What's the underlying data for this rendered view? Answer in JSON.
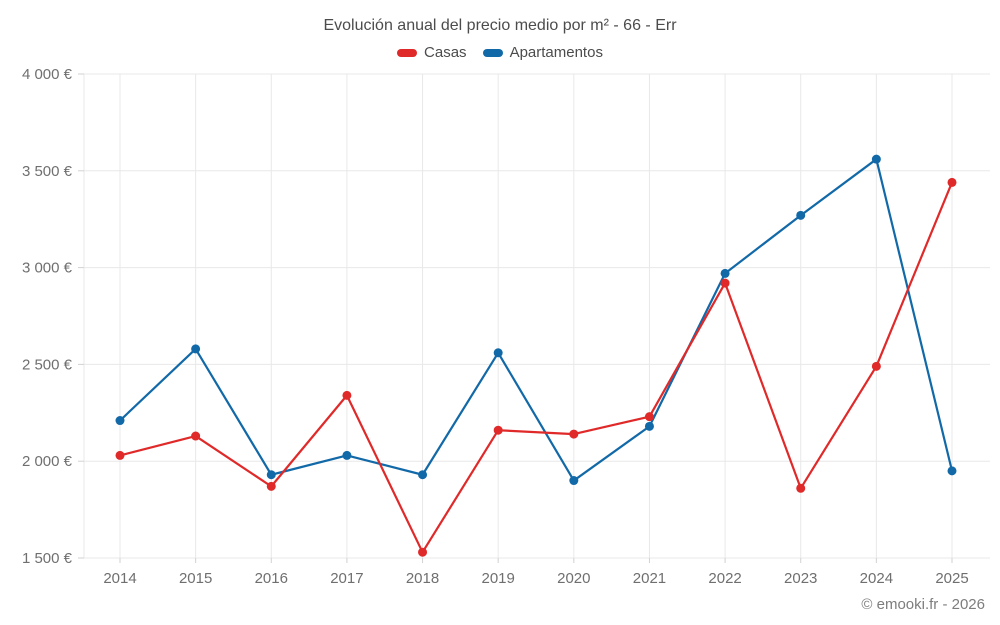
{
  "header": {
    "title": "Evolución anual del precio medio por m² - 66 - Err"
  },
  "footer": {
    "credit": "© emooki.fr - 2026"
  },
  "colors": {
    "casas": "#e02a2a",
    "apartamentos": "#1269a8",
    "gridline": "#e8e8e8",
    "tick": "#d2d2d2",
    "axis_label": "#6f6f6f",
    "title_text": "#4c4c4c",
    "footer_text": "#7d7d7d"
  },
  "chart_data": {
    "type": "line",
    "title": "Evolución anual del precio medio por m² - 66 - Err",
    "categories": [
      "2014",
      "2015",
      "2016",
      "2017",
      "2018",
      "2019",
      "2020",
      "2021",
      "2022",
      "2023",
      "2024",
      "2025"
    ],
    "series": [
      {
        "name": "Casas",
        "color": "#e02a2a",
        "values": [
          2030,
          2130,
          1870,
          2340,
          1530,
          2160,
          2140,
          2230,
          2920,
          1860,
          2490,
          3440
        ]
      },
      {
        "name": "Apartamentos",
        "color": "#1269a8",
        "values": [
          2210,
          2580,
          1930,
          2030,
          1930,
          2560,
          1900,
          2180,
          2970,
          3270,
          3560,
          1950
        ]
      }
    ],
    "xlabel": "",
    "ylabel": "",
    "ylim": [
      1500,
      4000
    ],
    "ytick_values": [
      1500,
      2000,
      2500,
      3000,
      3500,
      4000
    ],
    "ytick_labels": [
      "1 500 €",
      "2 000 €",
      "2 500 €",
      "3 000 €",
      "3 500 €",
      "4 000 €"
    ],
    "grid": true,
    "legend_position": "top",
    "marker": "circle"
  }
}
